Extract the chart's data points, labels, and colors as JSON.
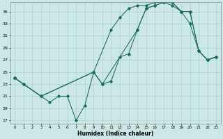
{
  "title": "",
  "xlabel": "Humidex (Indice chaleur)",
  "bg_color": "#cce8e6",
  "grid_color": "#aacfcd",
  "line_color": "#1a6b5e",
  "xlim": [
    -0.5,
    23.5
  ],
  "ylim": [
    16.5,
    36.5
  ],
  "yticks": [
    17,
    19,
    21,
    23,
    25,
    27,
    29,
    31,
    33,
    35
  ],
  "xticks": [
    0,
    1,
    2,
    3,
    4,
    5,
    6,
    7,
    8,
    9,
    10,
    11,
    12,
    13,
    14,
    15,
    16,
    17,
    18,
    19,
    20,
    21,
    22,
    23
  ],
  "line1_x": [
    0,
    1,
    3,
    4,
    5,
    6,
    7,
    8,
    9,
    11,
    12,
    13,
    14,
    15,
    16,
    17,
    18,
    19,
    20,
    21,
    22,
    23
  ],
  "line1_y": [
    24,
    23,
    21,
    20,
    21,
    21,
    17,
    19.5,
    25,
    32,
    34,
    35.5,
    36,
    36,
    36.5,
    36.5,
    36,
    35,
    33,
    28.5,
    27,
    27.5
  ],
  "line2_x": [
    0,
    1,
    3,
    9,
    10,
    11,
    12,
    13,
    14,
    15,
    16,
    17,
    18,
    19,
    20,
    21,
    22,
    23
  ],
  "line2_y": [
    24,
    23,
    21,
    25,
    23,
    23.5,
    27.5,
    28,
    32,
    35.5,
    36,
    36.5,
    36.5,
    35,
    35,
    28.5,
    27,
    27.5
  ],
  "line3_x": [
    0,
    3,
    9,
    10,
    14,
    15,
    16,
    17,
    18,
    19,
    20,
    21,
    22,
    23
  ],
  "line3_y": [
    24,
    21,
    25,
    23,
    32,
    35.5,
    36,
    36.5,
    36.5,
    35,
    35,
    28.5,
    27,
    27.5
  ]
}
